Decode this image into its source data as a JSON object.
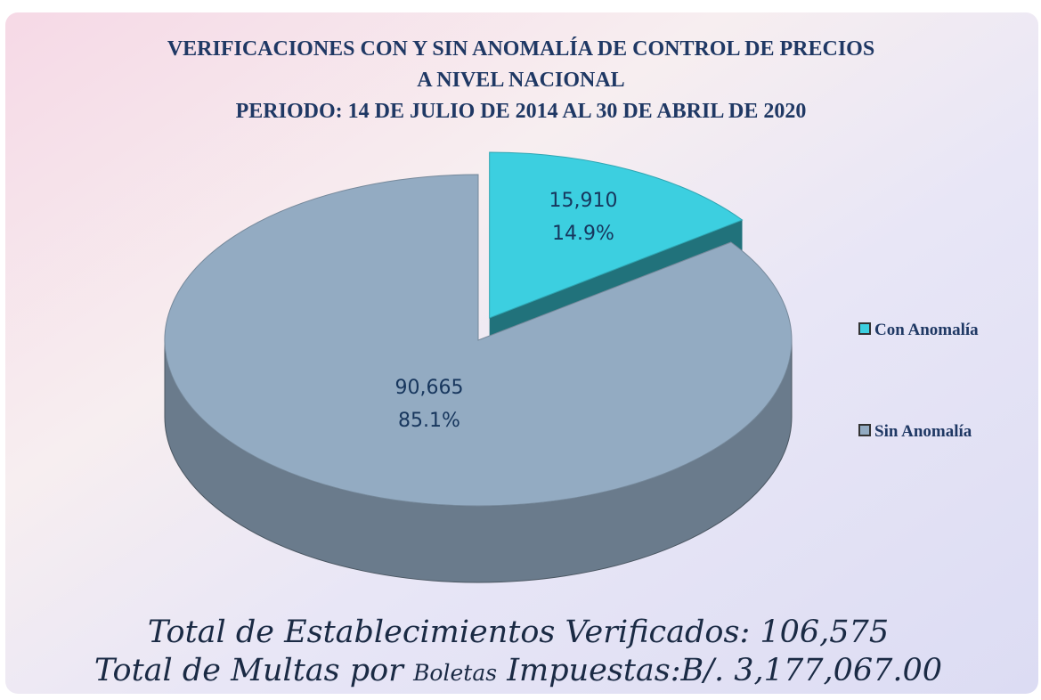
{
  "chart_data": {
    "type": "pie",
    "title": [
      "VERIFICACIONES CON Y SIN ANOMALÍA DE CONTROL DE PRECIOS",
      "A NIVEL NACIONAL",
      "PERIODO:  14 DE JULIO DE 2014 AL 30 DE ABRIL DE 2020"
    ],
    "categories": [
      "Con Anomalía",
      "Sin Anomalía"
    ],
    "values": [
      15910,
      90665
    ],
    "value_labels": [
      "15,910",
      "90,665"
    ],
    "percentages": [
      14.9,
      85.1
    ],
    "percentage_labels": [
      "14.9%",
      "85.1%"
    ],
    "colors": [
      "#3ccfe0",
      "#93abc2"
    ],
    "legend": "right",
    "annotations": [
      "Total de Establecimientos Verificados: 106,575",
      [
        "Total de Multas por",
        "Boletas",
        "Impuestas:B/. 3,177,067.00"
      ]
    ]
  }
}
